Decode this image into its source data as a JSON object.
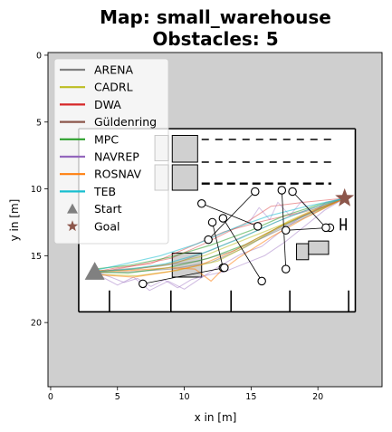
{
  "chart_data": {
    "type": "line",
    "title_lines": [
      "Map: small_warehouse",
      "Obstacles: 5"
    ],
    "xlabel": "x in [m]",
    "ylabel": "y in [m]",
    "xlim": [
      -0.2,
      24.8
    ],
    "ylim": [
      24.8,
      -0.2
    ],
    "x_ticks": [
      0,
      5,
      10,
      15,
      20
    ],
    "y_ticks": [
      0,
      5,
      10,
      15,
      20
    ],
    "grid": false,
    "legend_position": "top-left",
    "colors": {
      "background": "#cfcfcf",
      "free_space": "#ffffff",
      "obstacle_fill": "#d0d0d0",
      "wall": "#000000",
      "ARENA": "#808080",
      "CADRL": "#bcbd22",
      "DWA": "#d62728",
      "Güldenring": "#8c564b",
      "MPC": "#2ca02c",
      "NAVREP": "#9467bd",
      "ROSNAV": "#ff7f0e",
      "TEB": "#17becf"
    },
    "legend": [
      {
        "label": "ARENA",
        "marker": "line",
        "color": "#808080"
      },
      {
        "label": "CADRL",
        "marker": "line",
        "color": "#bcbd22"
      },
      {
        "label": "DWA",
        "marker": "line",
        "color": "#d62728"
      },
      {
        "label": "Güldenring",
        "marker": "line",
        "color": "#8c564b"
      },
      {
        "label": "MPC",
        "marker": "line",
        "color": "#2ca02c"
      },
      {
        "label": "NAVREP",
        "marker": "line",
        "color": "#9467bd"
      },
      {
        "label": "ROSNAV",
        "marker": "line",
        "color": "#ff7f0e"
      },
      {
        "label": "TEB",
        "marker": "line",
        "color": "#17becf"
      },
      {
        "label": "Start",
        "marker": "triangle",
        "color": "#808080"
      },
      {
        "label": "Goal",
        "marker": "star",
        "color": "#8c564b"
      }
    ],
    "start": [
      3.3,
      16.2
    ],
    "goal": [
      22.0,
      10.7
    ],
    "map": {
      "free_area": [
        [
          2.1,
          5.5
        ],
        [
          22.8,
          19.2
        ]
      ],
      "walls": [
        [
          [
            2.1,
            5.5
          ],
          [
            22.8,
            5.5
          ]
        ],
        [
          [
            22.8,
            5.5
          ],
          [
            22.8,
            19.2
          ]
        ],
        [
          [
            22.8,
            19.2
          ],
          [
            2.1,
            19.2
          ]
        ],
        [
          [
            2.1,
            19.2
          ],
          [
            2.1,
            5.5
          ]
        ],
        [
          [
            4.4,
            17.6
          ],
          [
            4.4,
            19.2
          ]
        ],
        [
          [
            9.0,
            17.6
          ],
          [
            9.0,
            19.2
          ]
        ],
        [
          [
            13.5,
            17.6
          ],
          [
            13.5,
            19.2
          ]
        ],
        [
          [
            17.9,
            17.6
          ],
          [
            17.9,
            19.2
          ]
        ],
        [
          [
            22.3,
            17.6
          ],
          [
            22.3,
            19.2
          ]
        ],
        [
          [
            21.7,
            12.2
          ],
          [
            21.7,
            13.1
          ]
        ],
        [
          [
            22.1,
            12.2
          ],
          [
            22.1,
            13.1
          ]
        ],
        [
          [
            21.7,
            12.7
          ],
          [
            22.1,
            12.7
          ]
        ]
      ],
      "dashes": [
        [
          [
            11.3,
            6.3
          ],
          [
            21.0,
            6.3
          ]
        ],
        [
          [
            11.3,
            8.0
          ],
          [
            21.0,
            8.0
          ]
        ],
        [
          [
            11.3,
            9.6
          ],
          [
            21.0,
            9.6
          ]
        ]
      ],
      "obstacles": [
        [
          9.1,
          14.8,
          2.2,
          1.8
        ],
        [
          18.4,
          14.1,
          0.9,
          1.2
        ],
        [
          19.3,
          13.9,
          1.5,
          1.0
        ],
        [
          7.8,
          6.0,
          1.0,
          1.9
        ],
        [
          9.1,
          6.0,
          1.9,
          2.0
        ],
        [
          7.8,
          8.2,
          1.0,
          1.9
        ],
        [
          9.1,
          8.2,
          1.9,
          1.9
        ]
      ]
    },
    "dynamic_obstacles": [
      {
        "from": [
          11.3,
          11.1
        ],
        "to": [
          15.5,
          12.8
        ]
      },
      {
        "from": [
          12.1,
          12.5
        ],
        "to": [
          12.9,
          15.9
        ]
      },
      {
        "from": [
          12.9,
          12.2
        ],
        "to": [
          15.8,
          16.9
        ]
      },
      {
        "from": [
          15.3,
          10.2
        ],
        "to": [
          11.8,
          13.8
        ]
      },
      {
        "from": [
          17.3,
          10.1
        ],
        "to": [
          17.6,
          16.0
        ]
      },
      {
        "from": [
          17.6,
          13.1
        ],
        "to": [
          20.9,
          12.9
        ]
      },
      {
        "from": [
          18.1,
          10.2
        ],
        "to": [
          20.6,
          12.9
        ]
      },
      {
        "from": [
          13.0,
          15.9
        ],
        "to": [
          6.9,
          17.1
        ]
      }
    ],
    "series": [
      {
        "color": "#808080",
        "width": 1.2,
        "alpha": 0.55,
        "points": [
          [
            3.3,
            16.2
          ],
          [
            5.5,
            16.0
          ],
          [
            8.0,
            15.8
          ],
          [
            11.0,
            15.4
          ],
          [
            13.5,
            14.7
          ],
          [
            16.0,
            13.6
          ],
          [
            18.5,
            12.4
          ],
          [
            22.0,
            10.7
          ]
        ]
      },
      {
        "color": "#808080",
        "width": 1.2,
        "alpha": 0.55,
        "points": [
          [
            3.3,
            16.3
          ],
          [
            6.0,
            16.2
          ],
          [
            9.0,
            16.0
          ],
          [
            12.0,
            15.5
          ],
          [
            14.5,
            14.4
          ],
          [
            17.0,
            13.0
          ],
          [
            19.5,
            11.8
          ],
          [
            22.0,
            10.7
          ]
        ]
      },
      {
        "color": "#bcbd22",
        "width": 1.2,
        "alpha": 0.55,
        "points": [
          [
            3.3,
            16.1
          ],
          [
            5.2,
            16.1
          ],
          [
            8.5,
            15.7
          ],
          [
            11.5,
            15.0
          ],
          [
            14.0,
            14.0
          ],
          [
            17.5,
            12.6
          ],
          [
            20.0,
            11.6
          ],
          [
            22.0,
            10.7
          ]
        ]
      },
      {
        "color": "#bcbd22",
        "width": 1.2,
        "alpha": 0.55,
        "points": [
          [
            3.3,
            16.4
          ],
          [
            6.5,
            16.5
          ],
          [
            9.5,
            16.1
          ],
          [
            12.5,
            15.4
          ],
          [
            15.0,
            14.1
          ],
          [
            17.8,
            12.4
          ],
          [
            20.3,
            11.3
          ],
          [
            22.0,
            10.7
          ]
        ]
      },
      {
        "color": "#d62728",
        "width": 1.0,
        "alpha": 0.45,
        "points": [
          [
            3.3,
            16.2
          ],
          [
            5.0,
            15.9
          ],
          [
            7.5,
            15.6
          ],
          [
            10.5,
            14.3
          ],
          [
            13.0,
            13.2
          ],
          [
            15.5,
            12.5
          ],
          [
            18.5,
            11.8
          ],
          [
            22.0,
            10.7
          ]
        ]
      },
      {
        "color": "#d62728",
        "width": 1.0,
        "alpha": 0.45,
        "points": [
          [
            3.3,
            16.3
          ],
          [
            6.0,
            15.8
          ],
          [
            9.0,
            15.2
          ],
          [
            11.5,
            14.1
          ],
          [
            14.5,
            12.6
          ],
          [
            16.5,
            11.3
          ],
          [
            19.0,
            11.0
          ],
          [
            22.0,
            10.7
          ]
        ]
      },
      {
        "color": "#8c564b",
        "width": 1.0,
        "alpha": 0.45,
        "points": [
          [
            3.3,
            16.2
          ],
          [
            6.5,
            16.0
          ],
          [
            9.5,
            15.5
          ],
          [
            12.0,
            14.6
          ],
          [
            15.0,
            13.3
          ],
          [
            18.0,
            12.0
          ],
          [
            20.5,
            11.3
          ],
          [
            22.0,
            10.7
          ]
        ]
      },
      {
        "color": "#2ca02c",
        "width": 1.2,
        "alpha": 0.55,
        "points": [
          [
            3.3,
            16.2
          ],
          [
            5.8,
            16.3
          ],
          [
            8.8,
            15.9
          ],
          [
            11.8,
            15.2
          ],
          [
            14.5,
            14.2
          ],
          [
            17.0,
            12.9
          ],
          [
            19.8,
            11.6
          ],
          [
            22.0,
            10.7
          ]
        ]
      },
      {
        "color": "#2ca02c",
        "width": 1.2,
        "alpha": 0.55,
        "points": [
          [
            3.3,
            16.0
          ],
          [
            6.0,
            15.7
          ],
          [
            9.0,
            15.1
          ],
          [
            12.0,
            14.2
          ],
          [
            15.0,
            13.1
          ],
          [
            17.5,
            12.0
          ],
          [
            20.0,
            11.2
          ],
          [
            22.0,
            10.7
          ]
        ]
      },
      {
        "color": "#9467bd",
        "width": 1.0,
        "alpha": 0.45,
        "points": [
          [
            3.3,
            16.2
          ],
          [
            4.5,
            16.6
          ],
          [
            5.5,
            17.0
          ],
          [
            6.5,
            16.7
          ],
          [
            7.5,
            17.3
          ],
          [
            8.5,
            16.8
          ],
          [
            9.5,
            17.4
          ],
          [
            10.5,
            16.8
          ],
          [
            11.5,
            16.5
          ],
          [
            13.0,
            16.2
          ],
          [
            14.5,
            15.6
          ],
          [
            16.0,
            15.0
          ],
          [
            17.5,
            14.0
          ],
          [
            19.0,
            12.8
          ],
          [
            20.5,
            11.6
          ],
          [
            22.0,
            10.7
          ]
        ]
      },
      {
        "color": "#9467bd",
        "width": 1.0,
        "alpha": 0.45,
        "points": [
          [
            3.3,
            16.3
          ],
          [
            5.0,
            17.2
          ],
          [
            6.2,
            16.6
          ],
          [
            7.4,
            17.6
          ],
          [
            8.8,
            16.9
          ],
          [
            10.0,
            17.5
          ],
          [
            11.2,
            16.7
          ],
          [
            12.6,
            15.8
          ],
          [
            14.2,
            14.9
          ],
          [
            15.8,
            14.3
          ],
          [
            17.2,
            13.2
          ],
          [
            18.6,
            12.2
          ],
          [
            20.2,
            11.4
          ],
          [
            22.0,
            10.7
          ]
        ]
      },
      {
        "color": "#9467bd",
        "width": 1.0,
        "alpha": 0.4,
        "points": [
          [
            14.8,
            12.6
          ],
          [
            15.6,
            11.4
          ],
          [
            16.4,
            12.3
          ],
          [
            17.0,
            11.0
          ],
          [
            17.9,
            12.0
          ],
          [
            18.8,
            10.9
          ],
          [
            19.6,
            11.8
          ],
          [
            20.6,
            11.0
          ],
          [
            22.0,
            10.7
          ]
        ]
      },
      {
        "color": "#ff7f0e",
        "width": 1.2,
        "alpha": 0.55,
        "points": [
          [
            3.3,
            16.2
          ],
          [
            6.0,
            16.1
          ],
          [
            9.0,
            15.9
          ],
          [
            10.8,
            16.0
          ],
          [
            12.0,
            16.9
          ],
          [
            12.8,
            16.1
          ],
          [
            14.0,
            15.2
          ],
          [
            16.5,
            13.6
          ],
          [
            19.0,
            12.2
          ],
          [
            22.0,
            10.7
          ]
        ]
      },
      {
        "color": "#ff7f0e",
        "width": 1.2,
        "alpha": 0.55,
        "points": [
          [
            3.3,
            16.4
          ],
          [
            6.2,
            16.6
          ],
          [
            8.8,
            16.2
          ],
          [
            11.2,
            15.7
          ],
          [
            13.8,
            14.6
          ],
          [
            16.2,
            13.3
          ],
          [
            18.8,
            12.0
          ],
          [
            22.0,
            10.7
          ]
        ]
      },
      {
        "color": "#17becf",
        "width": 1.2,
        "alpha": 0.55,
        "points": [
          [
            3.3,
            16.2
          ],
          [
            6.0,
            16.0
          ],
          [
            8.6,
            15.6
          ],
          [
            11.4,
            14.8
          ],
          [
            14.2,
            13.7
          ],
          [
            16.8,
            12.5
          ],
          [
            19.4,
            11.5
          ],
          [
            22.0,
            10.7
          ]
        ]
      },
      {
        "color": "#17becf",
        "width": 1.2,
        "alpha": 0.55,
        "points": [
          [
            3.3,
            16.1
          ],
          [
            5.6,
            15.6
          ],
          [
            8.2,
            15.0
          ],
          [
            11.0,
            14.1
          ],
          [
            13.8,
            12.9
          ],
          [
            16.4,
            12.0
          ],
          [
            19.2,
            11.3
          ],
          [
            22.0,
            10.7
          ]
        ]
      }
    ]
  }
}
